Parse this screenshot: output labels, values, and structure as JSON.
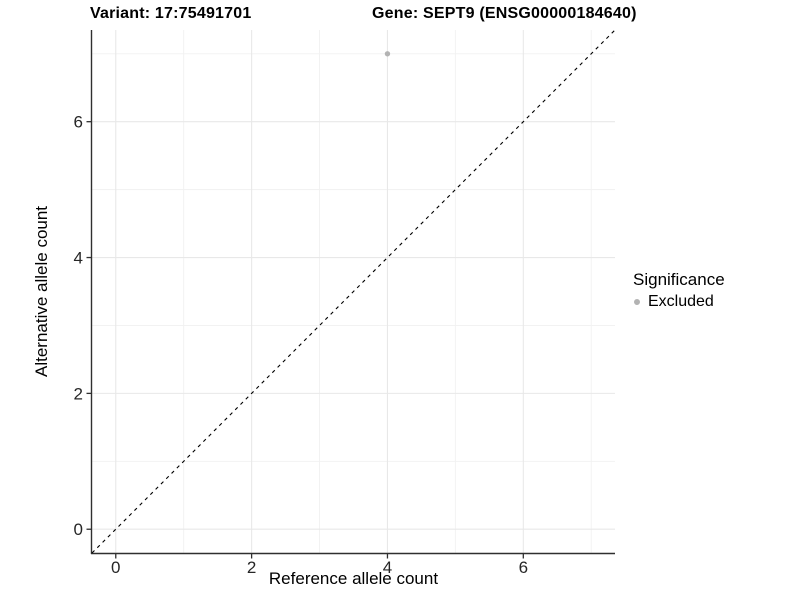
{
  "chart_data": {
    "type": "scatter",
    "title_left": "Variant: 17:75491701",
    "title_right": "Gene: SEPT9 (ENSG00000184640)",
    "xlabel": "Reference allele count",
    "ylabel": "Alternative allele count",
    "xlim": [
      -0.35,
      7.35
    ],
    "ylim": [
      -0.35,
      7.35
    ],
    "x_ticks": [
      0,
      2,
      4,
      6
    ],
    "y_ticks": [
      0,
      2,
      4,
      6
    ],
    "x_minor_ticks": [
      1,
      3,
      5,
      7
    ],
    "y_minor_ticks": [
      1,
      3,
      5,
      7
    ],
    "grid": "major+minor",
    "points": [
      {
        "x": 4,
        "y": 7,
        "series": "Excluded"
      }
    ],
    "diagonal_line": {
      "type": "identity",
      "style": "dashed",
      "from": -0.35,
      "to": 7.35
    },
    "legend": {
      "title": "Significance",
      "position": "right",
      "entries": [
        {
          "label": "Excluded",
          "color": "#b3b3b3"
        }
      ]
    }
  },
  "colors": {
    "background": "#ffffff",
    "point": "#b3b3b3",
    "grid_major": "#e8e8e8",
    "grid_minor": "#f1f1f1",
    "axis_line": "#2f2f2f",
    "tick_text": "#262626",
    "dashed_line": "#000000"
  }
}
